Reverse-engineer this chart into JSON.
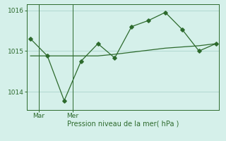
{
  "line1_x": [
    0,
    1,
    2,
    3,
    4,
    5,
    6,
    7,
    8,
    9,
    10,
    11
  ],
  "line1_y": [
    1015.3,
    1014.88,
    1013.78,
    1014.75,
    1015.18,
    1014.83,
    1015.6,
    1015.75,
    1015.95,
    1015.53,
    1015.0,
    1015.18
  ],
  "line2_x": [
    0,
    1,
    2,
    3,
    4,
    5,
    6,
    7,
    8,
    9,
    10,
    11
  ],
  "line2_y": [
    1014.88,
    1014.88,
    1014.88,
    1014.88,
    1014.88,
    1014.92,
    1014.97,
    1015.02,
    1015.07,
    1015.1,
    1015.13,
    1015.18
  ],
  "line_color": "#2d6a2d",
  "bg_color": "#d5f0ea",
  "grid_color": "#b0d8d0",
  "axis_color": "#2d6a2d",
  "xlabel": "Pression niveau de la mer( hPa )",
  "xlabel_color": "#2d6a2d",
  "ylim": [
    1013.55,
    1016.15
  ],
  "yticks": [
    1014,
    1015,
    1016
  ],
  "mar_x": 0.5,
  "mer_x": 2.5,
  "vline_x": [
    0.5,
    2.5
  ],
  "xlim": [
    -0.2,
    11.2
  ]
}
